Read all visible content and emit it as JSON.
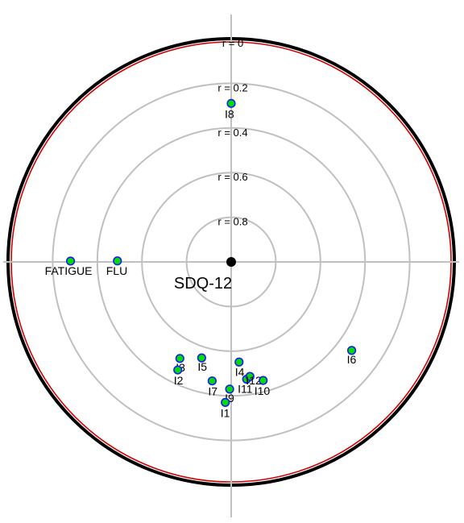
{
  "chart_data": {
    "type": "scatter",
    "coordinate_system": "polar",
    "center_label": "SDQ-12",
    "radial_axis": {
      "variable": "r",
      "outer_value": 0,
      "inner_value": 1
    },
    "rings": [
      {
        "r": 0,
        "label": "r = 0"
      },
      {
        "r": 0.2,
        "label": "r = 0.2"
      },
      {
        "r": 0.4,
        "label": "r = 0.4"
      },
      {
        "r": 0.6,
        "label": "r = 0.6"
      },
      {
        "r": 0.8,
        "label": "r = 0.8"
      }
    ],
    "grid": true,
    "colors": {
      "outer_circle": "#000000",
      "r0_circle": "#d00000",
      "grid": "#c0c0c0",
      "point_fill": "#00dd00",
      "point_edge": "#1a1aff",
      "center_point": "#000000"
    },
    "points": [
      {
        "label": "I8",
        "angle_deg": 90.0,
        "r": 0.29
      },
      {
        "label": "FATIGUE",
        "angle_deg": 179.7,
        "r": 0.28
      },
      {
        "label": "FLU",
        "angle_deg": 179.5,
        "r": 0.49
      },
      {
        "label": "I6",
        "angle_deg": -36.3,
        "r": 0.33
      },
      {
        "label": "I3",
        "angle_deg": -118.0,
        "r": 0.51
      },
      {
        "label": "I5",
        "angle_deg": -107.1,
        "r": 0.55
      },
      {
        "label": "I2",
        "angle_deg": -116.3,
        "r": 0.46
      },
      {
        "label": "I4",
        "angle_deg": -85.5,
        "r": 0.55
      },
      {
        "label": "I7",
        "angle_deg": -99.1,
        "r": 0.46
      },
      {
        "label": "I9",
        "angle_deg": -90.7,
        "r": 0.43
      },
      {
        "label": "I11",
        "angle_deg": -82.5,
        "r": 0.47
      },
      {
        "label": "I12",
        "angle_deg": -80.7,
        "r": 0.48
      },
      {
        "label": "I10",
        "angle_deg": -74.9,
        "r": 0.45
      },
      {
        "label": "I1",
        "angle_deg": -92.4,
        "r": 0.37
      }
    ]
  }
}
